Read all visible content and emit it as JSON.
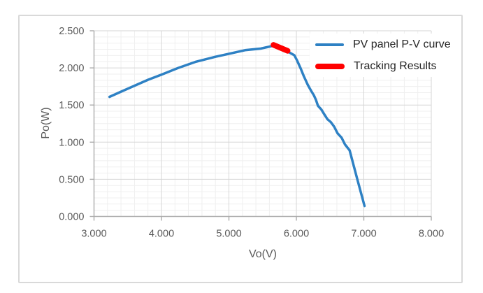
{
  "chart_data": {
    "type": "line",
    "title": "",
    "xlabel": "Vo(V)",
    "ylabel": "Po(W)",
    "xlim": [
      3.0,
      8.0
    ],
    "ylim": [
      0.0,
      2.5
    ],
    "x_tick_step": 1.0,
    "y_tick_step": 0.5,
    "x_minor_divisions": 5,
    "y_minor_divisions": 6,
    "x_tick_labels": [
      "3.000",
      "4.000",
      "5.000",
      "6.000",
      "7.000",
      "8.000"
    ],
    "y_tick_labels": [
      "0.000",
      "0.500",
      "1.000",
      "1.500",
      "2.000",
      "2.500"
    ],
    "grid": "major and minor gridlines, both axes",
    "legend_position": "inside top-right",
    "series": [
      {
        "name": "PV panel P-V curve",
        "type": "line",
        "color": "#2E81C4",
        "width": 3.5,
        "points": [
          [
            3.23,
            1.61
          ],
          [
            3.4,
            1.68
          ],
          [
            3.6,
            1.76
          ],
          [
            3.8,
            1.84
          ],
          [
            4.0,
            1.91
          ],
          [
            4.25,
            2.0
          ],
          [
            4.5,
            2.08
          ],
          [
            4.8,
            2.15
          ],
          [
            5.0,
            2.19
          ],
          [
            5.25,
            2.24
          ],
          [
            5.47,
            2.26
          ],
          [
            5.67,
            2.3
          ],
          [
            5.77,
            2.26
          ],
          [
            5.87,
            2.22
          ],
          [
            5.97,
            2.17
          ],
          [
            6.01,
            2.1
          ],
          [
            6.06,
            2.0
          ],
          [
            6.11,
            1.89
          ],
          [
            6.17,
            1.77
          ],
          [
            6.22,
            1.69
          ],
          [
            6.26,
            1.63
          ],
          [
            6.29,
            1.57
          ],
          [
            6.32,
            1.49
          ],
          [
            6.37,
            1.44
          ],
          [
            6.41,
            1.38
          ],
          [
            6.46,
            1.31
          ],
          [
            6.51,
            1.27
          ],
          [
            6.56,
            1.21
          ],
          [
            6.61,
            1.12
          ],
          [
            6.67,
            1.06
          ],
          [
            6.72,
            0.97
          ],
          [
            6.79,
            0.89
          ],
          [
            6.9,
            0.51
          ],
          [
            7.01,
            0.14
          ]
        ]
      },
      {
        "name": "Tracking Results",
        "type": "line",
        "color": "#FF0000",
        "width": 8,
        "points": [
          [
            5.66,
            2.31
          ],
          [
            5.87,
            2.23
          ]
        ]
      }
    ]
  },
  "colors": {
    "background": "#FFFFFF",
    "frame_border": "#D9D9D9",
    "axis_line": "#ABABAB",
    "major_grid": "#D6D6D6",
    "minor_grid": "#EFEFEF",
    "tick_label": "#595959",
    "axis_title": "#595959",
    "legend_text": "#262626"
  }
}
